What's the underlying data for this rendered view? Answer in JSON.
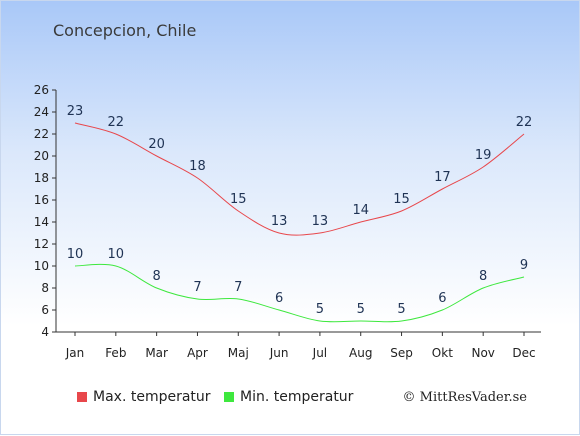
{
  "title": "Concepcion, Chile",
  "credit": "© MittResVader.se",
  "chart_data": {
    "type": "line",
    "categories": [
      "Jan",
      "Feb",
      "Mar",
      "Apr",
      "Maj",
      "Jun",
      "Jul",
      "Aug",
      "Sep",
      "Okt",
      "Nov",
      "Dec"
    ],
    "series": [
      {
        "name": "Max. temperatur",
        "color": "#e8474b",
        "values": [
          23,
          22,
          20,
          18,
          15,
          13,
          13,
          14,
          15,
          17,
          19,
          22
        ]
      },
      {
        "name": "Min. temperatur",
        "color": "#3ee83e",
        "values": [
          10,
          10,
          8,
          7,
          7,
          6,
          5,
          5,
          5,
          6,
          8,
          9
        ]
      }
    ],
    "yticks": [
      4,
      6,
      8,
      10,
      12,
      14,
      16,
      18,
      20,
      22,
      24,
      26
    ],
    "ylim": [
      4,
      26
    ],
    "grid": false,
    "legend_placement": "bottom"
  }
}
